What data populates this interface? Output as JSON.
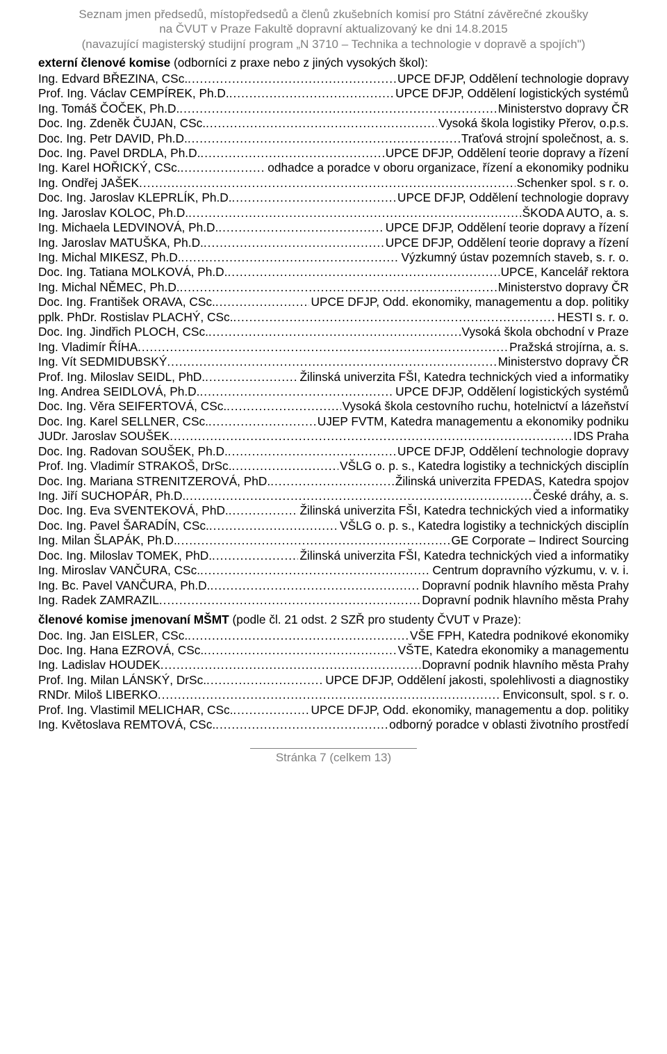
{
  "header": {
    "line1": "Seznam jmen předsedů, místopředsedů a členů zkušebních komisí pro Státní závěrečné zkoušky",
    "line2": "na ČVUT v Praze Fakultě dopravní aktualizovaný ke dni 14.8.2015",
    "line3": "(navazující magisterský studijní program „N 3710 – Technika a technologie v dopravě a spojích\")"
  },
  "sections": [
    {
      "title_bold": "externí členové komise",
      "title_rest": " (odborníci z praxe nebo z jiných vysokých škol):",
      "entries": [
        {
          "name": "Ing. Edvard BŘEZINA, CSc.",
          "org": " UPCE DFJP, Oddělení technologie dopravy"
        },
        {
          "name": "Prof. Ing. Václav CEMPÍREK, Ph.D.",
          "org": "UPCE DFJP, Oddělení logistických systémů"
        },
        {
          "name": "Ing. Tomáš ČOČEK, Ph.D.",
          "org": " Ministerstvo dopravy ČR"
        },
        {
          "name": "Doc. Ing. Zdeněk ČUJAN, CSc.",
          "org": " Vysoká škola logistiky Přerov, o.p.s."
        },
        {
          "name": "Doc. Ing. Petr DAVID, Ph.D.",
          "org": " Traťová strojní společnost, a. s."
        },
        {
          "name": "Doc. Ing. Pavel DRDLA, Ph.D.",
          "org": " UPCE DFJP, Oddělení teorie dopravy a řízení"
        },
        {
          "name": "Ing. Karel HOŘICKÝ, CSc.",
          "org": " odhadce a poradce v oboru organizace, řízení a ekonomiky podniku"
        },
        {
          "name": "Ing. Ondřej JAŠEK",
          "org": " Schenker spol. s r. o."
        },
        {
          "name": "Doc. Ing. Jaroslav KLEPRLÍK, Ph.D.",
          "org": " UPCE DFJP, Oddělení technologie dopravy"
        },
        {
          "name": "Ing. Jaroslav KOLOC, Ph.D.",
          "org": " ŠKODA AUTO, a. s."
        },
        {
          "name": "Ing. Michaela LEDVINOVÁ, Ph.D.",
          "org": " UPCE DFJP, Oddělení teorie dopravy a řízení"
        },
        {
          "name": "Ing. Jaroslav MATUŠKA, Ph.D.",
          "org": " UPCE DFJP, Oddělení teorie dopravy a řízení"
        },
        {
          "name": "Ing. Michal MIKESZ, Ph.D.",
          "org": " Výzkumný ústav pozemních staveb, s. r. o."
        },
        {
          "name": "Doc. Ing. Tatiana MOLKOVÁ, Ph.D.",
          "org": " UPCE, Kancelář rektora"
        },
        {
          "name": "Ing. Michal NĚMEC, Ph.D.",
          "org": " Ministerstvo dopravy ČR"
        },
        {
          "name": "Doc. Ing. František ORAVA, CSc.",
          "org": " UPCE DFJP, Odd. ekonomiky, managementu a dop. politiky"
        },
        {
          "name": "pplk. PhDr. Rostislav PLACHÝ, CSc.",
          "org": " HESTI s. r. o."
        },
        {
          "name": "Doc. Ing. Jindřich PLOCH, CSc.",
          "org": "Vysoká škola obchodní v Praze"
        },
        {
          "name": "Ing. Vladimír ŘÍHA",
          "org": "Pražská strojírna, a. s."
        },
        {
          "name": "Ing. Vít SEDMIDUBSKÝ",
          "org": " Ministerstvo dopravy ČR"
        },
        {
          "name": "Prof. Ing. Miloslav SEIDL, PhD.",
          "org": "Žilinská univerzita FŠI, Katedra technických vied a informatiky"
        },
        {
          "name": "Ing. Andrea SEIDLOVÁ, Ph.D.",
          "org": "UPCE DFJP, Oddělení logistických systémů"
        },
        {
          "name": "Doc. Ing. Věra SEIFERTOVÁ, CSc.",
          "org": " Vysoká škola cestovního ruchu, hotelnictví a lázeňství"
        },
        {
          "name": "Doc. Ing. Karel SELLNER, CSc.",
          "org": " UJEP FVTM, Katedra managementu a ekonomiky podniku"
        },
        {
          "name": "JUDr. Jaroslav SOUŠEK",
          "org": " IDS Praha"
        },
        {
          "name": "Doc. Ing. Radovan SOUŠEK, Ph.D.",
          "org": " UPCE DFJP, Oddělení technologie dopravy"
        },
        {
          "name": "Prof. Ing. Vladimír STRAKOŠ, DrSc.",
          "org": " VŠLG o. p. s., Katedra logistiky a technických disciplín"
        },
        {
          "name": "Doc. Ing. Mariana STRENITZEROVÁ, PhD.",
          "org": " Žilinská univerzita FPEDAS, Katedra spojov"
        },
        {
          "name": "Ing. Jiří SUCHOPÁR, Ph.D.",
          "org": "České dráhy, a. s."
        },
        {
          "name": "Doc. Ing. Eva SVENTEKOVÁ, PhD.",
          "org": "Žilinská univerzita FŠI, Katedra technických vied a informatiky"
        },
        {
          "name": "Doc. Ing. Pavel ŠARADÍN, CSc.",
          "org": " VŠLG o. p. s., Katedra logistiky a technických disciplín"
        },
        {
          "name": "Ing. Milan ŠLAPÁK, Ph.D.",
          "org": " GE Corporate – Indirect Sourcing"
        },
        {
          "name": "Doc. Ing. Miloslav TOMEK, PhD.",
          "org": "Žilinská univerzita FŠI, Katedra technických vied a informatiky"
        },
        {
          "name": "Ing. Miroslav VANČURA, CSc.",
          "org": "Centrum dopravního výzkumu, v. v. i."
        },
        {
          "name": "Ing. Bc. Pavel VANČURA, Ph.D.",
          "org": " Dopravní podnik hlavního města Prahy"
        },
        {
          "name": "Ing. Radek ZAMRAZIL",
          "org": " Dopravní podnik hlavního města Prahy"
        }
      ]
    },
    {
      "title_bold": "členové komise jmenovaní MŠMT",
      "title_rest": " (podle čl. 21 odst. 2 SZŘ pro studenty ČVUT v Praze):",
      "entries": [
        {
          "name": "Doc. Ing. Jan EISLER, CSc.",
          "org": " VŠE FPH, Katedra podnikové ekonomiky"
        },
        {
          "name": "Doc. Ing. Hana EZROVÁ, CSc.",
          "org": " VŠTE, Katedra ekonomiky a managementu"
        },
        {
          "name": "Ing. Ladislav HOUDEK",
          "org": " Dopravní podnik hlavního města Prahy"
        },
        {
          "name": "Prof. Ing. Milan LÁNSKÝ, DrSc.",
          "org": " UPCE DFJP, Oddělení jakosti, spolehlivosti a diagnostiky"
        },
        {
          "name": "RNDr. Miloš LIBERKO",
          "org": " Enviconsult, spol. s r. o."
        },
        {
          "name": "Prof. Ing. Vlastimil MELICHAR, CSc.",
          "org": " UPCE DFJP, Odd. ekonomiky, managementu a dop. politiky"
        },
        {
          "name": "Ing. Květoslava REMTOVÁ, CSc.",
          "org": "odborný poradce v oblasti životního prostředí"
        }
      ]
    }
  ],
  "footer": {
    "text": "Stránka 7 (celkem 13)"
  }
}
